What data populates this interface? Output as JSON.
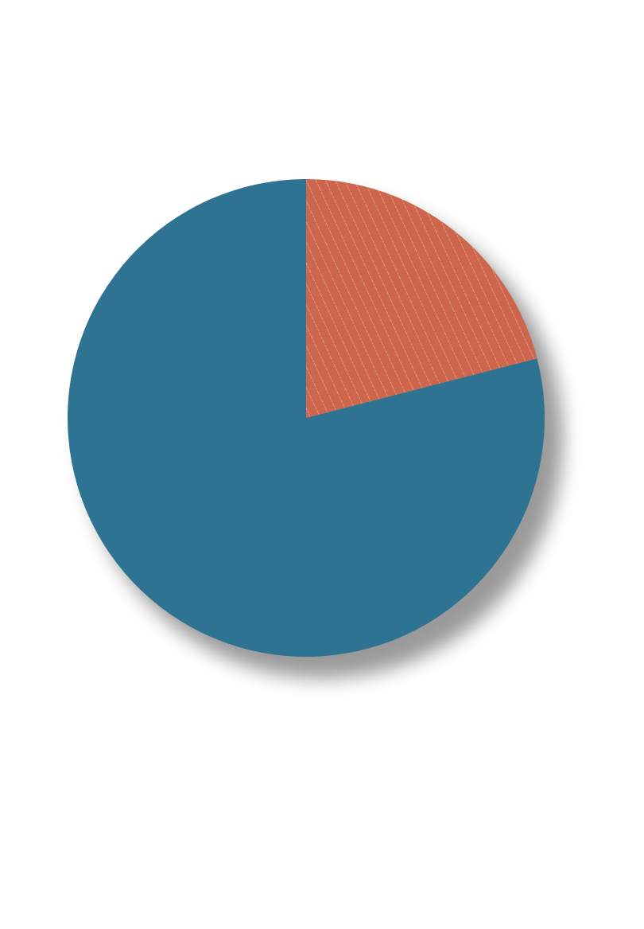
{
  "chart_data": {
    "type": "pie",
    "title": "",
    "start_angle_deg": 0,
    "direction": "clockwise",
    "legend": "none",
    "slices": [
      {
        "value": 21,
        "color": "#cd664c",
        "pattern": "diagonal-hatch",
        "pattern_color": "#e8b3a3"
      },
      {
        "value": 79,
        "color": "#2e7392",
        "pattern": "none"
      }
    ],
    "shadow_color": "#9a9a9a"
  }
}
